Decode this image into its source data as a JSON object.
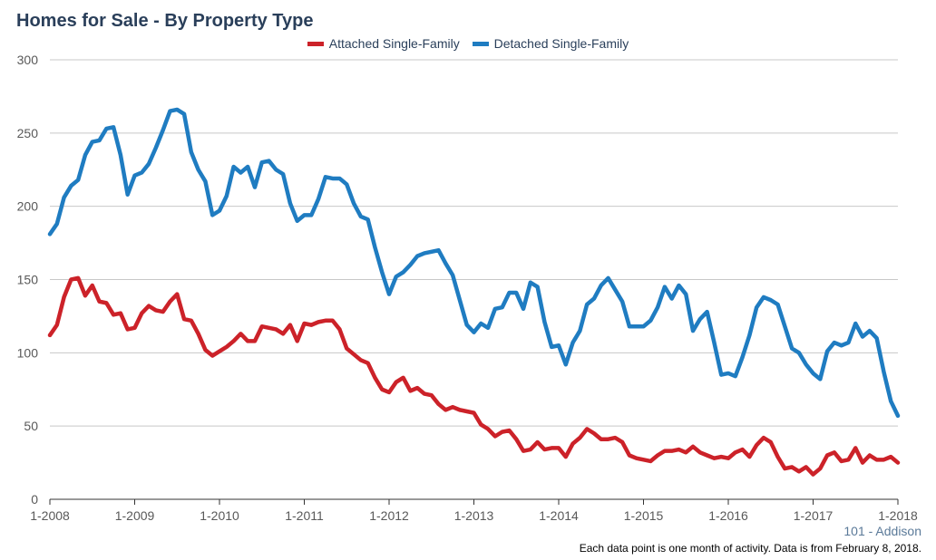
{
  "header": {
    "title": "Homes for Sale - By Property Type"
  },
  "legend": {
    "items": [
      {
        "label": "Attached Single-Family",
        "color": "#cc2229"
      },
      {
        "label": "Detached Single-Family",
        "color": "#1f7cc1"
      }
    ]
  },
  "footer": {
    "area": "101 - Addison",
    "note": "Each data point is one month of activity. Data is from February 8, 2018."
  },
  "chart_data": {
    "type": "line",
    "title": "Homes for Sale - By Property Type",
    "x_start": "2008-01",
    "x_ticks": [
      "1-2008",
      "1-2009",
      "1-2010",
      "1-2011",
      "1-2012",
      "1-2013",
      "1-2014",
      "1-2015",
      "1-2016",
      "1-2017",
      "1-2018"
    ],
    "ylim": [
      0,
      300
    ],
    "y_ticks": [
      0,
      50,
      100,
      150,
      200,
      250,
      300
    ],
    "grid": true,
    "legend_position": "top-center",
    "series": [
      {
        "name": "Attached Single-Family",
        "color": "#cc2229",
        "values": [
          112,
          119,
          138,
          150,
          151,
          139,
          146,
          135,
          134,
          126,
          127,
          116,
          117,
          127,
          132,
          129,
          128,
          135,
          140,
          123,
          122,
          113,
          102,
          98,
          101,
          104,
          108,
          113,
          108,
          108,
          118,
          117,
          116,
          113,
          119,
          108,
          120,
          119,
          121,
          122,
          122,
          116,
          103,
          99,
          95,
          93,
          83,
          75,
          73,
          80,
          83,
          74,
          76,
          72,
          71,
          65,
          61,
          63,
          61,
          60,
          59,
          51,
          48,
          43,
          46,
          47,
          41,
          33,
          34,
          39,
          34,
          35,
          35,
          29,
          38,
          42,
          48,
          45,
          41,
          41,
          42,
          39,
          30,
          28,
          27,
          26,
          30,
          33,
          33,
          34,
          32,
          36,
          32,
          30,
          28,
          29,
          28,
          32,
          34,
          29,
          37,
          42,
          39,
          29,
          21,
          22,
          19,
          22,
          17,
          21,
          30,
          32,
          26,
          27,
          35,
          25,
          30,
          27,
          27,
          29,
          25
        ]
      },
      {
        "name": "Detached Single-Family",
        "color": "#1f7cc1",
        "values": [
          181,
          188,
          206,
          214,
          218,
          235,
          244,
          245,
          253,
          254,
          235,
          208,
          221,
          223,
          229,
          240,
          252,
          265,
          266,
          263,
          237,
          225,
          217,
          194,
          197,
          207,
          227,
          223,
          227,
          213,
          230,
          231,
          225,
          222,
          202,
          190,
          194,
          194,
          205,
          220,
          219,
          219,
          215,
          202,
          193,
          191,
          172,
          155,
          140,
          152,
          155,
          160,
          166,
          168,
          169,
          170,
          161,
          153,
          136,
          119,
          114,
          120,
          117,
          130,
          131,
          141,
          141,
          130,
          148,
          145,
          121,
          104,
          105,
          92,
          107,
          115,
          133,
          137,
          146,
          151,
          143,
          135,
          118,
          118,
          118,
          122,
          131,
          145,
          137,
          146,
          140,
          115,
          123,
          128,
          107,
          85,
          86,
          84,
          97,
          112,
          131,
          138,
          136,
          133,
          118,
          103,
          100,
          92,
          86,
          82,
          101,
          107,
          105,
          107,
          120,
          111,
          115,
          110,
          87,
          67,
          57
        ]
      }
    ]
  }
}
